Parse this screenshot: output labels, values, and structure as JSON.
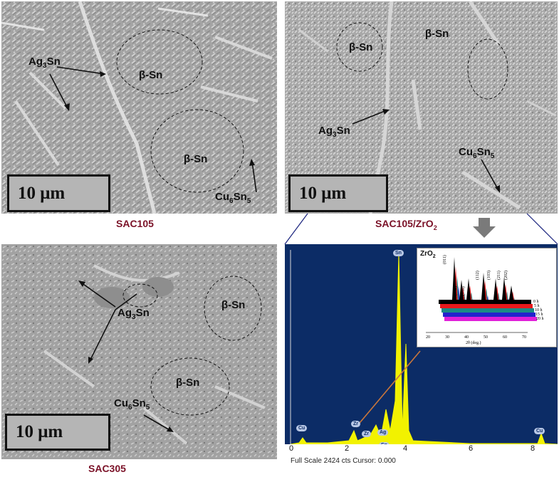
{
  "panels": {
    "sac105": {
      "caption": "SAC105",
      "scale": "10 μm",
      "labels": {
        "ag_base": "Ag",
        "ag_sub": "3",
        "ag_tail": "Sn",
        "bsn1": "β-Sn",
        "bsn2": "β-Sn",
        "cu_base": "Cu",
        "cu_sub": "6",
        "cu_tail": "Sn",
        "cu_sub2": "5"
      }
    },
    "sac105zro2": {
      "caption_base": "SAC105/ZrO",
      "caption_sub": "2",
      "scale": "10 μm",
      "labels": {
        "bsn1": "β-Sn",
        "bsn2": "β-Sn",
        "ag_base": "Ag",
        "ag_sub": "3",
        "ag_tail": "Sn",
        "cu_base": "Cu",
        "cu_sub": "6",
        "cu_tail": "Sn",
        "cu_sub2": "5"
      }
    },
    "sac305": {
      "caption": "SAC305",
      "scale": "10 μm",
      "labels": {
        "ag_base": "Ag",
        "ag_sub": "3",
        "ag_tail": "Sn",
        "bsn1": "β-Sn",
        "bsn2": "β-Sn",
        "cu_base": "Cu",
        "cu_sub": "6",
        "cu_tail": "Sn",
        "cu_sub2": "5"
      }
    }
  },
  "eds": {
    "peak_labels": [
      "Sn",
      "Ag",
      "Sn",
      "Zr",
      "Zr",
      "Cu",
      "Cu"
    ],
    "x_ticks": [
      "0",
      "2",
      "4",
      "6",
      "8"
    ],
    "footer": "Full Scale 2424 cts Cursor: 0.000",
    "colors": {
      "background": "#0c2c66",
      "spectrum": "#f2f200",
      "pointer": "#c8763c"
    }
  },
  "xrd_inset": {
    "title_base": "ZrO",
    "title_sub": "2",
    "peaks": [
      "(011)",
      "(002)",
      "(110)",
      "(112)",
      "(103)",
      "(211)",
      "(202)"
    ],
    "times": [
      "0 h",
      "5 h",
      "10 h",
      "15 h",
      "20 h"
    ],
    "x_ticks": [
      "20",
      "30",
      "40",
      "50",
      "60",
      "70"
    ],
    "xlabel": "2θ (deg.)",
    "series_colors": [
      "#000000",
      "#e8181b",
      "#1a8a86",
      "#2222cc",
      "#e020d8"
    ]
  },
  "accent": {
    "arrow": "#7a7a7a",
    "connector": "#1a237e"
  }
}
